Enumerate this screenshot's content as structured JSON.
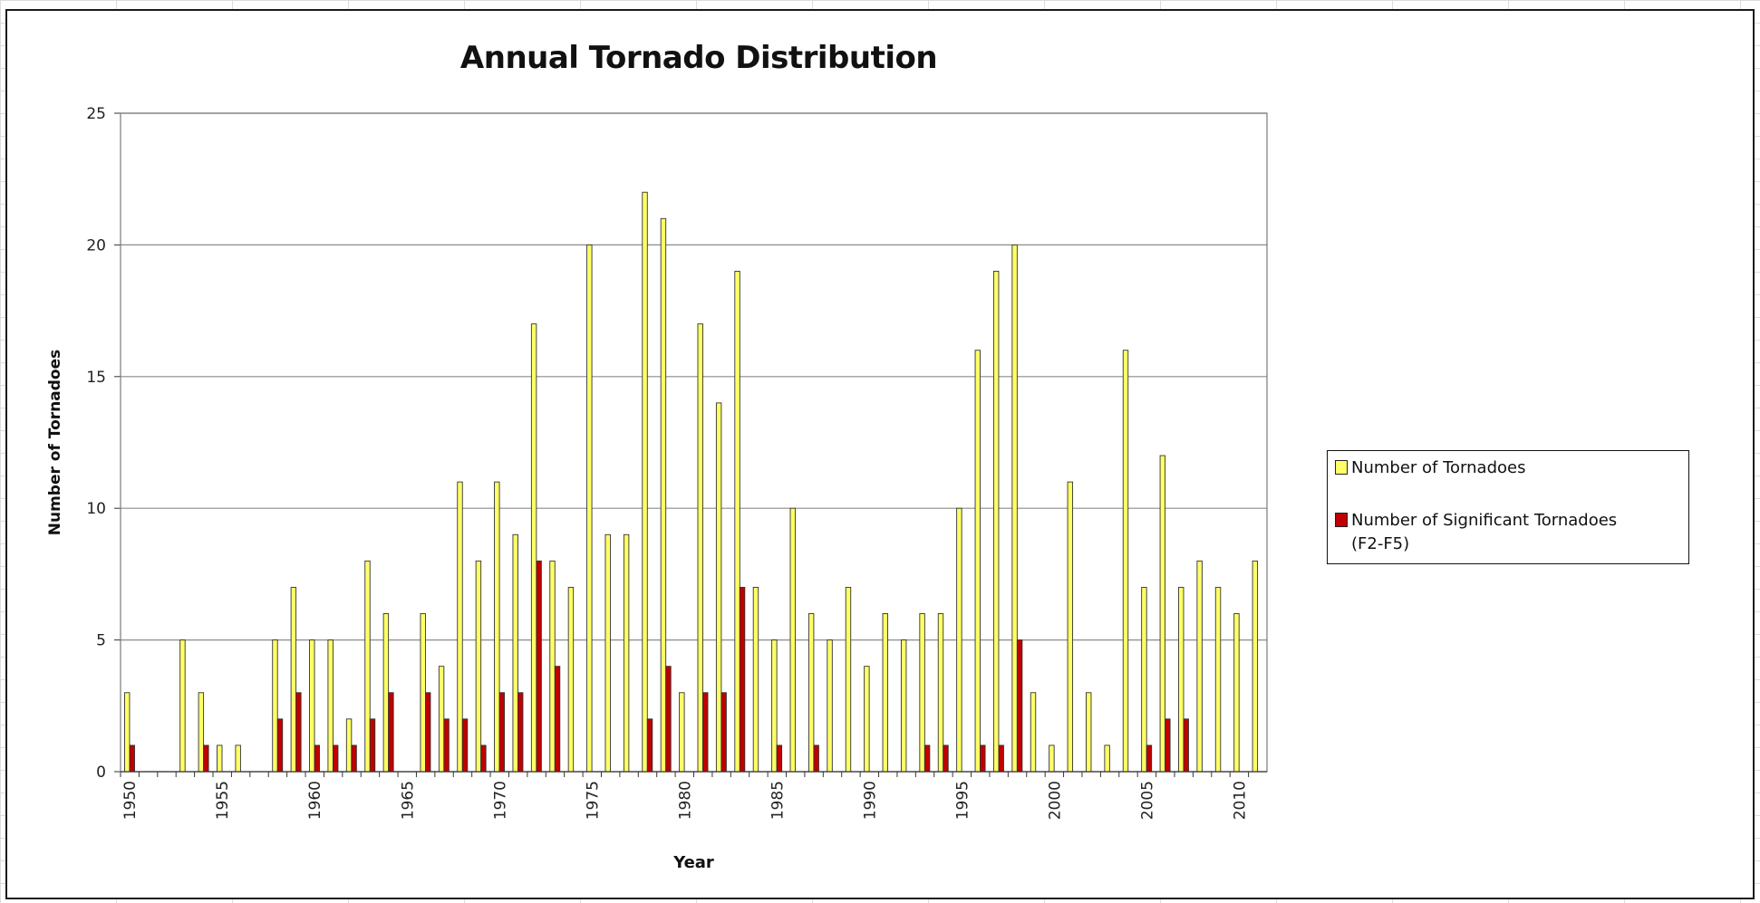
{
  "chart_data": {
    "type": "bar",
    "title": "Annual Tornado Distribution",
    "xlabel": "Year",
    "ylabel": "Number of Tornadoes",
    "ylim": [
      0,
      25
    ],
    "yticks": [
      0,
      5,
      10,
      15,
      20,
      25
    ],
    "xticks": [
      1950,
      1955,
      1960,
      1965,
      1970,
      1975,
      1980,
      1985,
      1990,
      1995,
      2000,
      2005,
      2010
    ],
    "grid": "horizontal",
    "legend_position": "right",
    "categories": [
      1950,
      1951,
      1952,
      1953,
      1954,
      1955,
      1956,
      1957,
      1958,
      1959,
      1960,
      1961,
      1962,
      1963,
      1964,
      1965,
      1966,
      1967,
      1968,
      1969,
      1970,
      1971,
      1972,
      1973,
      1974,
      1975,
      1976,
      1977,
      1978,
      1979,
      1980,
      1981,
      1982,
      1983,
      1984,
      1985,
      1986,
      1987,
      1988,
      1989,
      1990,
      1991,
      1992,
      1993,
      1994,
      1995,
      1996,
      1997,
      1998,
      1999,
      2000,
      2001,
      2002,
      2003,
      2004,
      2005,
      2006,
      2007,
      2008,
      2009,
      2010,
      2011
    ],
    "series": [
      {
        "name": "Number of Tornadoes",
        "color": "#ffff66",
        "values": [
          3,
          0,
          0,
          5,
          3,
          1,
          1,
          0,
          5,
          7,
          5,
          5,
          2,
          8,
          6,
          0,
          6,
          4,
          11,
          8,
          11,
          9,
          17,
          8,
          7,
          20,
          9,
          9,
          22,
          21,
          3,
          17,
          14,
          19,
          7,
          5,
          10,
          6,
          5,
          7,
          4,
          6,
          5,
          6,
          6,
          10,
          16,
          19,
          20,
          3,
          1,
          11,
          3,
          1,
          16,
          7,
          12,
          7,
          8,
          7,
          6,
          8
        ]
      },
      {
        "name": "Number of Significant Tornadoes (F2-F5)",
        "color": "#c00000",
        "values": [
          1,
          0,
          0,
          0,
          1,
          0,
          0,
          0,
          2,
          3,
          1,
          1,
          1,
          2,
          3,
          0,
          3,
          2,
          2,
          1,
          3,
          3,
          8,
          4,
          0,
          0,
          0,
          0,
          2,
          4,
          0,
          3,
          3,
          7,
          0,
          1,
          0,
          1,
          0,
          0,
          0,
          0,
          0,
          1,
          1,
          0,
          1,
          1,
          5,
          0,
          0,
          0,
          0,
          0,
          0,
          1,
          2,
          2,
          0,
          0,
          0,
          0
        ]
      }
    ]
  },
  "legend": {
    "items": [
      {
        "label": "Number of Tornadoes",
        "color": "#ffff66"
      },
      {
        "label": "Number of Significant Tornadoes\n(F2-F5)",
        "color": "#c00000"
      }
    ]
  }
}
